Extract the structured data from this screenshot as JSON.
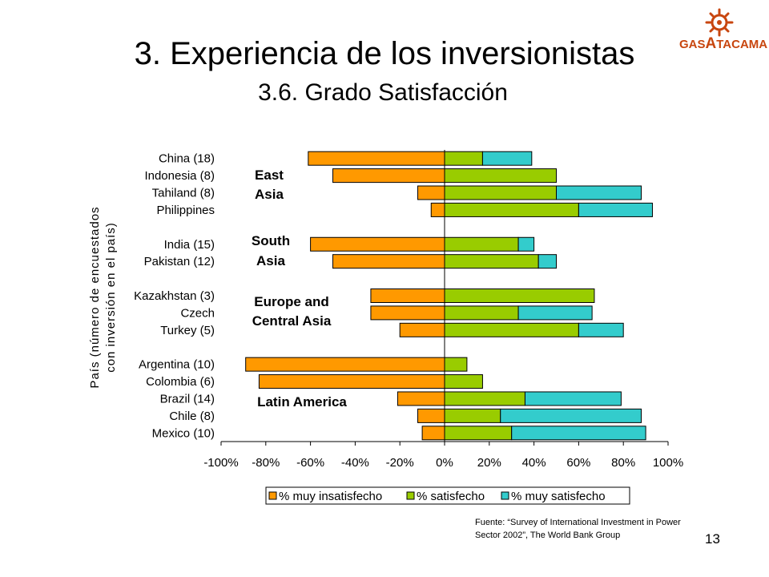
{
  "slide": {
    "title": "3. Experiencia de los inversionistas",
    "subtitle": "3.6. Grado Satisfacción",
    "page_number": "13",
    "source_line1": "Fuente: “Survey of International Investment in Power",
    "source_line2": "Sector 2002”, The World Bank Group",
    "logo_text_prefix": "GAS",
    "logo_text_big": "A",
    "logo_text_suffix": "TACAMA",
    "logo_icon": "sun-gear-icon"
  },
  "colors": {
    "muy_insatisfecho": "#ff9900",
    "satisfecho": "#99cc00",
    "muy_satisfecho": "#33cccc",
    "logo": "#c8460f"
  },
  "chart_data": {
    "type": "bar",
    "orientation": "horizontal",
    "stacked": true,
    "ylabel_line1": "País (número de encuestados",
    "ylabel_line2": "con inversión en el país)",
    "xlim": [
      -100,
      100
    ],
    "x_ticks": [
      "-100%",
      "-80%",
      "-60%",
      "-40%",
      "-20%",
      "0%",
      "20%",
      "40%",
      "60%",
      "80%",
      "100%"
    ],
    "grid": false,
    "legend_position": "bottom",
    "categories": [
      "China (18)",
      "Indonesia (8)",
      "Tahiland (8)",
      "Philippines",
      "India (15)",
      "Pakistan (12)",
      "Kazakhstan (3)",
      "Czech",
      "Turkey (5)",
      "Argentina (10)",
      "Colombia (6)",
      "Brazil (14)",
      "Chile (8)",
      "Mexico (10)"
    ],
    "category_slots": [
      0,
      1,
      2,
      3,
      5,
      6,
      8,
      9,
      10,
      12,
      13,
      14,
      15,
      16
    ],
    "total_slots": 17,
    "series": [
      {
        "name": "% muy insatisfecho",
        "values": [
          -61,
          -50,
          -12,
          -6,
          -60,
          -50,
          -33,
          -33,
          -20,
          -89,
          -83,
          -21,
          -12,
          -10
        ]
      },
      {
        "name": "% satisfecho",
        "values": [
          17,
          50,
          50,
          60,
          33,
          42,
          67,
          33,
          60,
          10,
          17,
          36,
          25,
          30
        ]
      },
      {
        "name": "% muy satisfecho",
        "values": [
          22,
          0,
          38,
          33,
          7,
          8,
          0,
          33,
          20,
          0,
          0,
          43,
          63,
          60
        ]
      }
    ],
    "group_labels": [
      {
        "line1": "East",
        "line2": "Asia"
      },
      {
        "line1": "South",
        "line2": "Asia"
      },
      {
        "line1": "Europe and",
        "line2": "Central Asia"
      },
      {
        "line1": "Latin America",
        "line2": ""
      }
    ]
  }
}
